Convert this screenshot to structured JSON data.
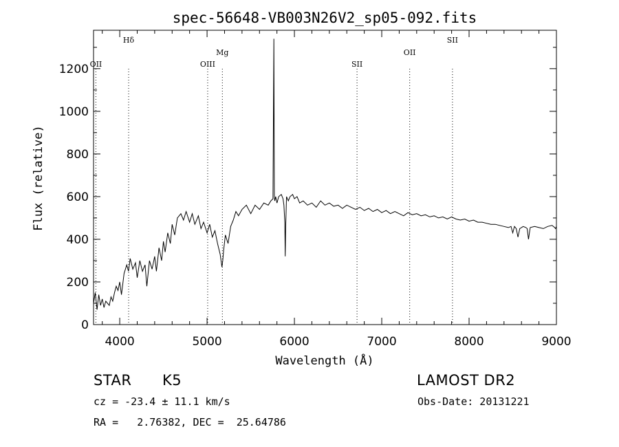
{
  "chart_data": {
    "type": "line",
    "title": "spec-56648-VB003N26V2_sp05-092.fits",
    "xlabel": "Wavelength (Å)",
    "ylabel": "Flux (relative)",
    "xlim": [
      3700,
      9000
    ],
    "ylim": [
      0,
      1380
    ],
    "xticks": [
      4000,
      5000,
      6000,
      7000,
      8000,
      9000
    ],
    "yticks": [
      0,
      200,
      400,
      600,
      800,
      1000,
      1200
    ],
    "grid": false,
    "lines": [
      {
        "label": "OII",
        "wavelength": 3727,
        "row": "low"
      },
      {
        "label": "Hδ",
        "wavelength": 4102,
        "row": "top"
      },
      {
        "label": "OIII",
        "wavelength": 5007,
        "row": "low"
      },
      {
        "label": "Mg",
        "wavelength": 5175,
        "row": "mid"
      },
      {
        "label": "SII",
        "wavelength": 6717,
        "row": "low"
      },
      {
        "label": "OII",
        "wavelength": 7320,
        "row": "mid"
      },
      {
        "label": "SII",
        "wavelength": 7810,
        "row": "top"
      }
    ],
    "series": [
      {
        "x": [
          3700,
          3720,
          3740,
          3760,
          3780,
          3800,
          3820,
          3840,
          3860,
          3880,
          3900,
          3920,
          3940,
          3960,
          3980,
          4000,
          4020,
          4050,
          4080,
          4100,
          4120,
          4150,
          4180,
          4200,
          4230,
          4260,
          4290,
          4310,
          4340,
          4370,
          4400,
          4420,
          4450,
          4480,
          4500,
          4520,
          4550,
          4580,
          4600,
          4630,
          4660,
          4700,
          4730,
          4760,
          4800,
          4830,
          4860,
          4900,
          4930,
          4960,
          5000,
          5030,
          5060,
          5090,
          5120,
          5150,
          5170,
          5180,
          5190,
          5210,
          5240,
          5270,
          5300,
          5330,
          5360,
          5400,
          5450,
          5500,
          5550,
          5600,
          5650,
          5700,
          5730,
          5755,
          5765,
          5770,
          5775,
          5785,
          5800,
          5820,
          5850,
          5870,
          5880,
          5890,
          5895,
          5900,
          5910,
          5930,
          5950,
          5980,
          6000,
          6030,
          6060,
          6100,
          6150,
          6200,
          6250,
          6300,
          6350,
          6400,
          6450,
          6500,
          6550,
          6600,
          6650,
          6700,
          6750,
          6800,
          6850,
          6900,
          6950,
          7000,
          7050,
          7100,
          7150,
          7200,
          7250,
          7300,
          7350,
          7400,
          7450,
          7500,
          7550,
          7600,
          7650,
          7700,
          7750,
          7800,
          7850,
          7900,
          7950,
          8000,
          8050,
          8100,
          8150,
          8200,
          8250,
          8300,
          8350,
          8400,
          8450,
          8480,
          8500,
          8520,
          8540,
          8560,
          8580,
          8600,
          8620,
          8650,
          8665,
          8680,
          8700,
          8750,
          8800,
          8850,
          8900,
          8950,
          8980,
          8990,
          9000
        ],
        "y": [
          100,
          150,
          70,
          140,
          90,
          120,
          80,
          110,
          100,
          90,
          130,
          110,
          150,
          180,
          160,
          200,
          140,
          240,
          280,
          250,
          310,
          260,
          290,
          220,
          300,
          250,
          280,
          180,
          300,
          260,
          320,
          250,
          360,
          300,
          390,
          340,
          430,
          380,
          470,
          420,
          500,
          520,
          490,
          530,
          480,
          520,
          470,
          510,
          450,
          480,
          430,
          470,
          410,
          440,
          380,
          330,
          270,
          300,
          350,
          420,
          380,
          460,
          490,
          530,
          510,
          540,
          560,
          520,
          560,
          540,
          570,
          560,
          580,
          590,
          1340,
          600,
          580,
          600,
          570,
          600,
          610,
          590,
          560,
          480,
          320,
          460,
          600,
          580,
          600,
          610,
          590,
          600,
          570,
          580,
          560,
          570,
          550,
          580,
          560,
          570,
          555,
          560,
          545,
          560,
          550,
          540,
          550,
          535,
          545,
          530,
          540,
          525,
          535,
          520,
          530,
          520,
          510,
          525,
          515,
          520,
          510,
          515,
          505,
          510,
          500,
          505,
          495,
          505,
          495,
          490,
          495,
          485,
          490,
          480,
          480,
          475,
          470,
          470,
          465,
          460,
          455,
          460,
          430,
          460,
          450,
          410,
          450,
          455,
          460,
          455,
          450,
          400,
          455,
          460,
          455,
          450,
          460,
          465,
          455,
          450,
          460
        ]
      }
    ]
  },
  "info": {
    "class_label": "STAR",
    "subclass": "K5",
    "survey": "LAMOST DR2",
    "cz": "cz = -23.4 ± 11.1 km/s",
    "obs_date": "Obs-Date: 20131221",
    "radec": "RA =   2.76382, DEC =  25.64786"
  }
}
